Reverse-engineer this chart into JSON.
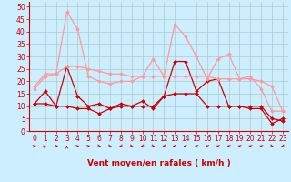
{
  "x": [
    0,
    1,
    2,
    3,
    4,
    5,
    6,
    7,
    8,
    9,
    10,
    11,
    12,
    13,
    14,
    15,
    16,
    17,
    18,
    19,
    20,
    21,
    22,
    23
  ],
  "series": [
    {
      "y": [
        11,
        16,
        10,
        26,
        14,
        10,
        11,
        9,
        11,
        10,
        12,
        9,
        14,
        28,
        28,
        16,
        20,
        21,
        10,
        10,
        9,
        9,
        3,
        5
      ],
      "color": "#cc0000",
      "lw": 0.9,
      "marker": "D",
      "ms": 2.0
    },
    {
      "y": [
        11,
        11,
        10,
        10,
        9,
        9,
        7,
        9,
        10,
        10,
        10,
        10,
        14,
        15,
        15,
        15,
        10,
        10,
        10,
        10,
        10,
        10,
        5,
        4
      ],
      "color": "#cc0000",
      "lw": 0.9,
      "marker": "D",
      "ms": 2.0
    },
    {
      "y": [
        18,
        23,
        23,
        48,
        41,
        22,
        20,
        19,
        20,
        20,
        22,
        29,
        22,
        43,
        38,
        30,
        21,
        29,
        31,
        21,
        22,
        17,
        8,
        8
      ],
      "color": "#ff9999",
      "lw": 0.9,
      "marker": "D",
      "ms": 2.0
    },
    {
      "y": [
        17,
        22,
        23,
        26,
        26,
        25,
        24,
        23,
        23,
        22,
        22,
        22,
        22,
        22,
        22,
        22,
        22,
        21,
        21,
        21,
        21,
        20,
        18,
        8
      ],
      "color": "#ff9999",
      "lw": 0.9,
      "marker": "D",
      "ms": 2.0
    }
  ],
  "background_color": "#cceeff",
  "grid_color": "#aacccc",
  "xlabel": "Vent moyen/en rafales ( km/h )",
  "ylim": [
    0,
    52
  ],
  "xlim": [
    -0.5,
    23.5
  ],
  "yticks": [
    0,
    5,
    10,
    15,
    20,
    25,
    30,
    35,
    40,
    45,
    50
  ],
  "xticks": [
    0,
    1,
    2,
    3,
    4,
    5,
    6,
    7,
    8,
    9,
    10,
    11,
    12,
    13,
    14,
    15,
    16,
    17,
    18,
    19,
    20,
    21,
    22,
    23
  ],
  "wind_arrows_angle": [
    225,
    210,
    270,
    180,
    225,
    225,
    315,
    315,
    45,
    315,
    45,
    315,
    45,
    90,
    90,
    135,
    135,
    135,
    135,
    135,
    135,
    135,
    315,
    45
  ],
  "dark_red": "#cc0000",
  "tick_fontsize": 5.5,
  "xlabel_fontsize": 6.5
}
